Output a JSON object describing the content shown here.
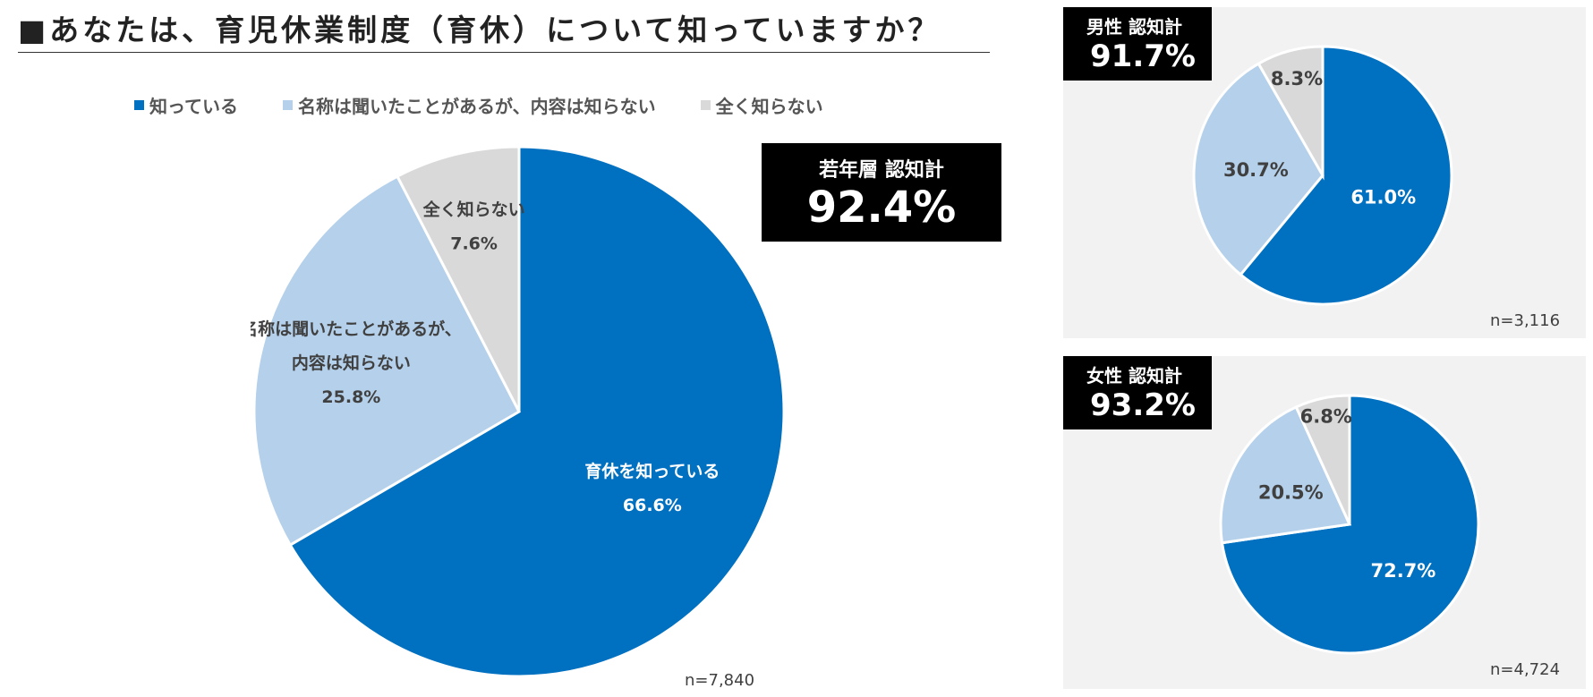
{
  "title": "■あなたは、育児休業制度（育休）について知っていますか？",
  "colors": {
    "known": "#0070C0",
    "heard": "#B4D0EA",
    "unknown": "#D9D9D9",
    "box": "#000000"
  },
  "legend": [
    {
      "label": "知っている",
      "color": "#0070C0"
    },
    {
      "label": "名称は聞いたことがあるが、内容は知らない",
      "color": "#B4D0EA"
    },
    {
      "label": "全く知らない",
      "color": "#D9D9D9"
    }
  ],
  "main_stat": {
    "caption": "若年層 認知計",
    "value": "92.4%"
  },
  "male_stat": {
    "caption": "男性 認知計",
    "value": "91.7%"
  },
  "female_stat": {
    "caption": "女性 認知計",
    "value": "93.2%"
  },
  "chart_data": [
    {
      "type": "pie",
      "name": "若年層",
      "n_label": "n=7,840",
      "slices": [
        {
          "label": "育休を知っている",
          "value": 66.6,
          "value_label": "66.6%",
          "color": "#0070C0"
        },
        {
          "label": "名称は聞いたことがあるが、\n内容は知らない",
          "value": 25.8,
          "value_label": "25.8%",
          "color": "#B4D0EA"
        },
        {
          "label": "全く知らない",
          "value": 7.6,
          "value_label": "7.6%",
          "color": "#D9D9D9"
        }
      ]
    },
    {
      "type": "pie",
      "name": "男性",
      "n_label": "n=3,116",
      "slices": [
        {
          "label": "",
          "value": 61.0,
          "value_label": "61.0%",
          "color": "#0070C0"
        },
        {
          "label": "",
          "value": 30.7,
          "value_label": "30.7%",
          "color": "#B4D0EA"
        },
        {
          "label": "",
          "value": 8.3,
          "value_label": "8.3%",
          "color": "#D9D9D9"
        }
      ]
    },
    {
      "type": "pie",
      "name": "女性",
      "n_label": "n=4,724",
      "slices": [
        {
          "label": "",
          "value": 72.7,
          "value_label": "72.7%",
          "color": "#0070C0"
        },
        {
          "label": "",
          "value": 20.5,
          "value_label": "20.5%",
          "color": "#B4D0EA"
        },
        {
          "label": "",
          "value": 6.8,
          "value_label": "6.8%",
          "color": "#D9D9D9"
        }
      ]
    }
  ]
}
